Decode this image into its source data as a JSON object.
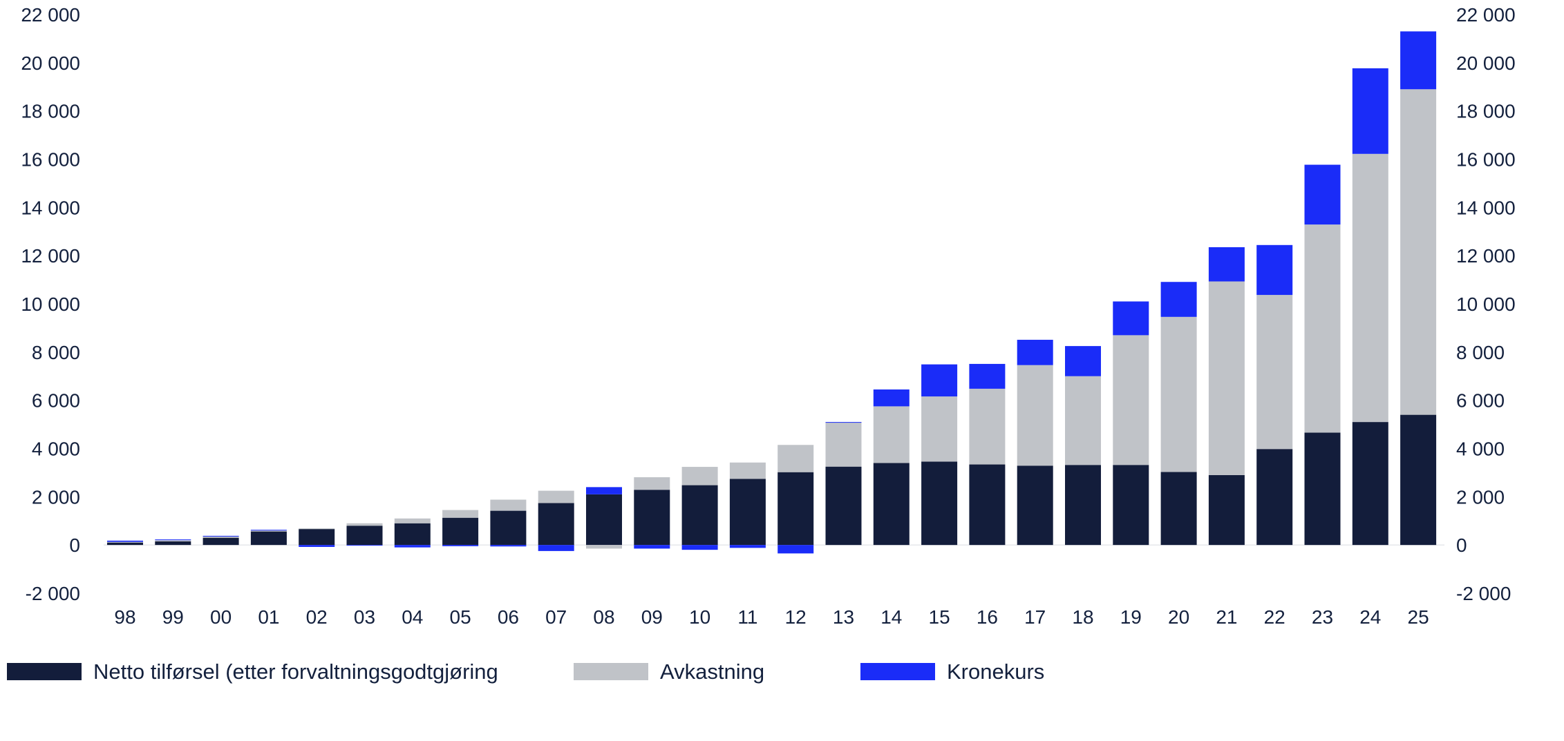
{
  "chart_data": {
    "type": "bar",
    "stacked": true,
    "categories": [
      "98",
      "99",
      "00",
      "01",
      "02",
      "03",
      "04",
      "05",
      "06",
      "07",
      "08",
      "09",
      "10",
      "11",
      "12",
      "13",
      "14",
      "15",
      "16",
      "17",
      "18",
      "19",
      "20",
      "21",
      "22",
      "23",
      "24",
      "25"
    ],
    "series": [
      {
        "name": "Netto tilførsel (etter forvaltningsgodtgjøring",
        "color": "#131d3b",
        "values": [
          100,
          150,
          300,
          560,
          660,
          800,
          900,
          1130,
          1420,
          1740,
          2100,
          2290,
          2480,
          2740,
          3020,
          3250,
          3400,
          3460,
          3340,
          3290,
          3320,
          3320,
          3030,
          2900,
          3980,
          4660,
          5100,
          5400
        ]
      },
      {
        "name": "Avkastning",
        "color": "#c0c3c8",
        "values": [
          30,
          50,
          60,
          50,
          30,
          100,
          200,
          320,
          460,
          510,
          -150,
          520,
          760,
          680,
          1130,
          1830,
          2350,
          2700,
          3140,
          4170,
          3680,
          5380,
          6430,
          8030,
          6390,
          8630,
          11120,
          13500
        ]
      },
      {
        "name": "Kronekurs",
        "color": "#1a2cf8",
        "values": [
          50,
          30,
          20,
          20,
          -80,
          -20,
          -100,
          -50,
          -60,
          -250,
          300,
          -150,
          -200,
          -120,
          -350,
          20,
          700,
          1330,
          1030,
          1050,
          1250,
          1400,
          1450,
          1420,
          2070,
          2480,
          3550,
          2400
        ]
      }
    ],
    "yticks": [
      "-2 000",
      "0",
      "2 000",
      "4 000",
      "6 000",
      "8 000",
      "10 000",
      "12 000",
      "14 000",
      "16 000",
      "18 000",
      "20 000",
      "22 000"
    ],
    "ylim": [
      -2000,
      22000
    ],
    "legend_position": "bottom",
    "secondary_axis": "mirror"
  }
}
